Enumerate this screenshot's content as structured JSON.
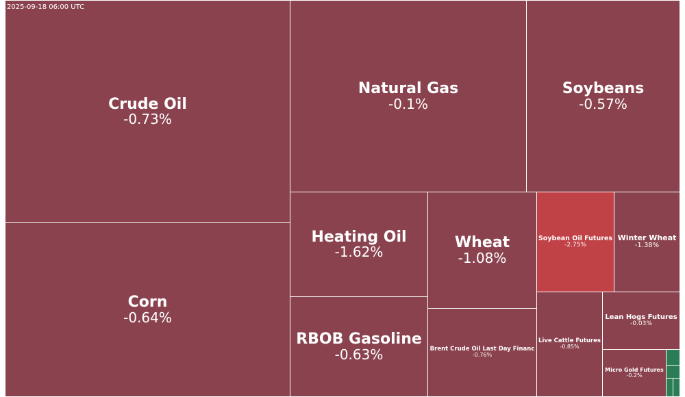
{
  "timestamp": "2025-09-18 06:00 UTC",
  "colors": {
    "negative_small": "#8a434e",
    "negative_large": "#c04146",
    "positive": "#2a7d55",
    "border": "#ffffff",
    "text": "#ffffff"
  },
  "chart_data": {
    "type": "treemap",
    "title": "",
    "items": [
      {
        "name": "Crude Oil",
        "change": "-0.73%"
      },
      {
        "name": "Corn",
        "change": "-0.64%"
      },
      {
        "name": "Natural Gas",
        "change": "-0.1%"
      },
      {
        "name": "Soybeans",
        "change": "-0.57%"
      },
      {
        "name": "Heating Oil",
        "change": "-1.62%"
      },
      {
        "name": "RBOB Gasoline",
        "change": "-0.63%"
      },
      {
        "name": "Wheat",
        "change": "-1.08%"
      },
      {
        "name": "Brent Crude Oil Last Day Financ",
        "change": "-0.76%"
      },
      {
        "name": "Soybean Oil Futures",
        "change": "-2.75%"
      },
      {
        "name": "Winter Wheat",
        "change": "-1.38%"
      },
      {
        "name": "Live Cattle Futures",
        "change": "-0.85%"
      },
      {
        "name": "Lean Hogs Futures",
        "change": "-0.03%"
      },
      {
        "name": "Micro Gold Futures",
        "change": "-0.2%"
      },
      {
        "name": "",
        "change": ""
      },
      {
        "name": "",
        "change": ""
      },
      {
        "name": "",
        "change": ""
      },
      {
        "name": "",
        "change": ""
      }
    ]
  }
}
